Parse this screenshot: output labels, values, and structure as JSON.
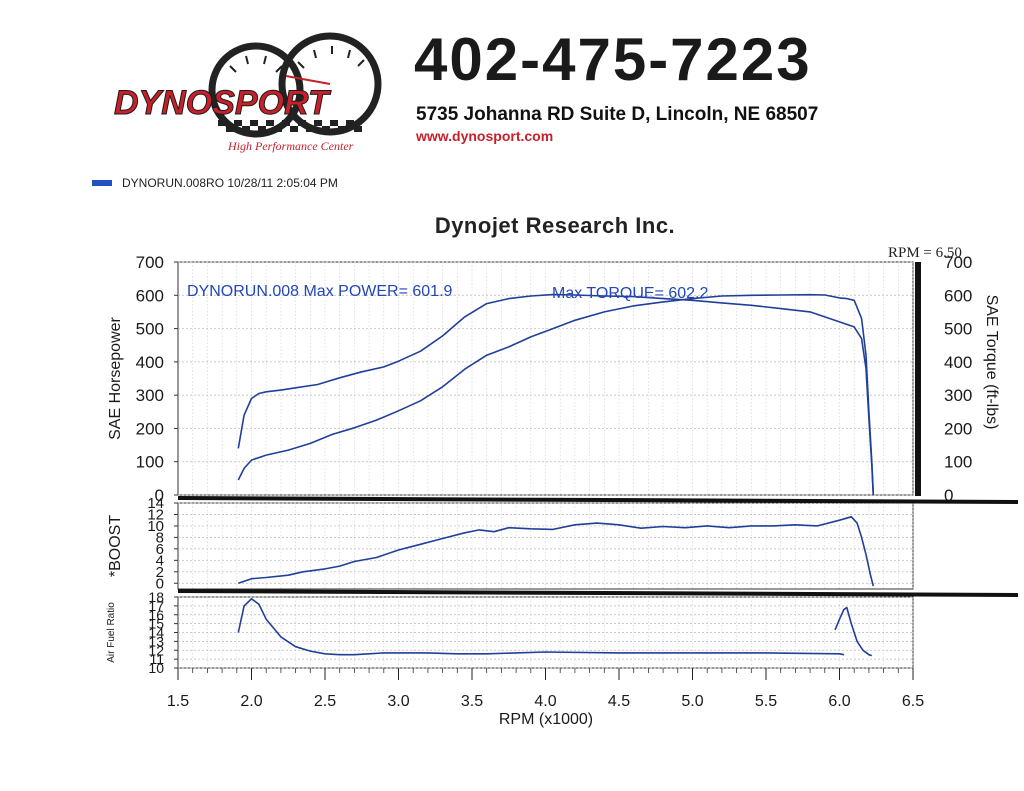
{
  "header": {
    "logo_text": "DYNOSPORT",
    "logo_tagline": "High Performance Center",
    "phone": "402-475-7223",
    "address": "5735 Johanna RD Suite D, Lincoln, NE 68507",
    "website": "www.dynosport.com",
    "run_legend": "DYNORUN.008RO  10/28/11 2:05:04 PM"
  },
  "colors": {
    "curve": "#1f3f9a",
    "legend_swatch": "#2350c0",
    "logo_red": "#c8202a"
  },
  "chart_data": {
    "type": "line",
    "title": "Dynojet Research Inc.",
    "rpm_readout": "RPM = 6.50",
    "x": {
      "label": "RPM (x1000)",
      "range": [
        1.5,
        6.5
      ],
      "ticks": [
        "1.5",
        "2.0",
        "2.5",
        "3.0",
        "3.5",
        "4.0",
        "4.5",
        "5.0",
        "5.5",
        "6.0",
        "6.5"
      ]
    },
    "annotation_power": "DYNORUN.008  Max POWER= 601.9",
    "annotation_torque": "Max TORQUE= 602.2",
    "panels": [
      {
        "id": "power",
        "ylabel": "SAE Horsepower",
        "ylim": [
          0,
          700
        ],
        "yticks": [
          "0",
          "100",
          "200",
          "300",
          "400",
          "500",
          "600",
          "700"
        ],
        "y2label": "SAE Torque (ft-lbs)",
        "y2lim": [
          0,
          700
        ],
        "y2ticks": [
          "0",
          "100",
          "200",
          "300",
          "400",
          "500",
          "600",
          "700"
        ],
        "series": [
          {
            "x": [
              1.91,
              1.95,
              2.0,
              2.1,
              2.25,
              2.4,
              2.55,
              2.7,
              2.85,
              3.0,
              3.15,
              3.3,
              3.45,
              3.6,
              3.75,
              3.9,
              4.05,
              4.2,
              4.4,
              4.6,
              4.8,
              5.0,
              5.2,
              5.4,
              5.6,
              5.8,
              5.9,
              6.0,
              6.05,
              6.1,
              6.15,
              6.18,
              6.2,
              6.22,
              6.23
            ],
            "y": [
              45,
              80,
              105,
              120,
              135,
              155,
              182,
              202,
              225,
              253,
              283,
              325,
              378,
              420,
              445,
              475,
              500,
              525,
              550,
              568,
              580,
              590,
              598,
              600,
              601,
              601.9,
              601,
              592,
              590,
              585,
              530,
              420,
              250,
              100,
              0
            ]
          },
          {
            "x": [
              1.91,
              1.95,
              2.0,
              2.05,
              2.1,
              2.2,
              2.3,
              2.45,
              2.6,
              2.75,
              2.9,
              3.0,
              3.15,
              3.3,
              3.45,
              3.6,
              3.75,
              3.9,
              4.05,
              4.2,
              4.4,
              4.6,
              4.8,
              5.0,
              5.2,
              5.4,
              5.6,
              5.8,
              6.0,
              6.1,
              6.15,
              6.18,
              6.2,
              6.22,
              6.23
            ],
            "y": [
              140,
              240,
              290,
              305,
              310,
              315,
              322,
              332,
              352,
              370,
              385,
              402,
              432,
              478,
              535,
              575,
              590,
              598,
              602.2,
              601,
              598,
              596,
              590,
              585,
              577,
              570,
              560,
              550,
              520,
              505,
              470,
              380,
              230,
              90,
              0
            ]
          }
        ]
      },
      {
        "id": "boost",
        "ylabel": "*BOOST",
        "ylim": [
          -1,
          14
        ],
        "yticks": [
          "0",
          "2",
          "4",
          "6",
          "8",
          "10",
          "12",
          "14"
        ],
        "series": [
          {
            "x": [
              1.91,
              2.0,
              2.1,
              2.25,
              2.35,
              2.5,
              2.6,
              2.7,
              2.85,
              3.0,
              3.15,
              3.3,
              3.45,
              3.55,
              3.65,
              3.75,
              3.9,
              4.05,
              4.2,
              4.35,
              4.5,
              4.65,
              4.8,
              4.95,
              5.1,
              5.25,
              5.4,
              5.55,
              5.7,
              5.85,
              6.0,
              6.08,
              6.12,
              6.15,
              6.18,
              6.21,
              6.23
            ],
            "y": [
              0,
              0.8,
              1.0,
              1.4,
              2.0,
              2.5,
              3.0,
              3.8,
              4.5,
              5.8,
              6.8,
              7.8,
              8.8,
              9.3,
              9.0,
              9.7,
              9.5,
              9.4,
              10.2,
              10.5,
              10.2,
              9.6,
              9.9,
              9.7,
              10.0,
              9.7,
              10.0,
              10.0,
              10.2,
              10.0,
              11.0,
              11.6,
              10.5,
              8.0,
              5.0,
              1.5,
              -0.5
            ]
          }
        ]
      },
      {
        "id": "afr",
        "ylabel": "Air Fuel Ratio",
        "ylim": [
          10,
          18
        ],
        "yticks": [
          "10",
          "11",
          "12",
          "13",
          "14",
          "15",
          "16",
          "17",
          "18"
        ],
        "series": [
          {
            "x": [
              1.91,
              1.95,
              2.0,
              2.05,
              2.1,
              2.2,
              2.3,
              2.4,
              2.5,
              2.6,
              2.7,
              2.8,
              2.9,
              3.0,
              3.2,
              3.4,
              3.6,
              3.8,
              4.0,
              4.5,
              5.0,
              5.5,
              6.0,
              6.03
            ],
            "y": [
              14.0,
              17.0,
              17.8,
              17.2,
              15.5,
              13.5,
              12.4,
              11.9,
              11.6,
              11.5,
              11.5,
              11.6,
              11.7,
              11.7,
              11.7,
              11.6,
              11.6,
              11.7,
              11.8,
              11.7,
              11.7,
              11.7,
              11.6,
              11.5
            ]
          },
          {
            "x": [
              5.97,
              6.0,
              6.03,
              6.05,
              6.08,
              6.12,
              6.16,
              6.2,
              6.22
            ],
            "y": [
              14.3,
              15.5,
              16.6,
              16.8,
              15.0,
              13.0,
              12.0,
              11.5,
              11.4
            ]
          }
        ]
      }
    ]
  }
}
